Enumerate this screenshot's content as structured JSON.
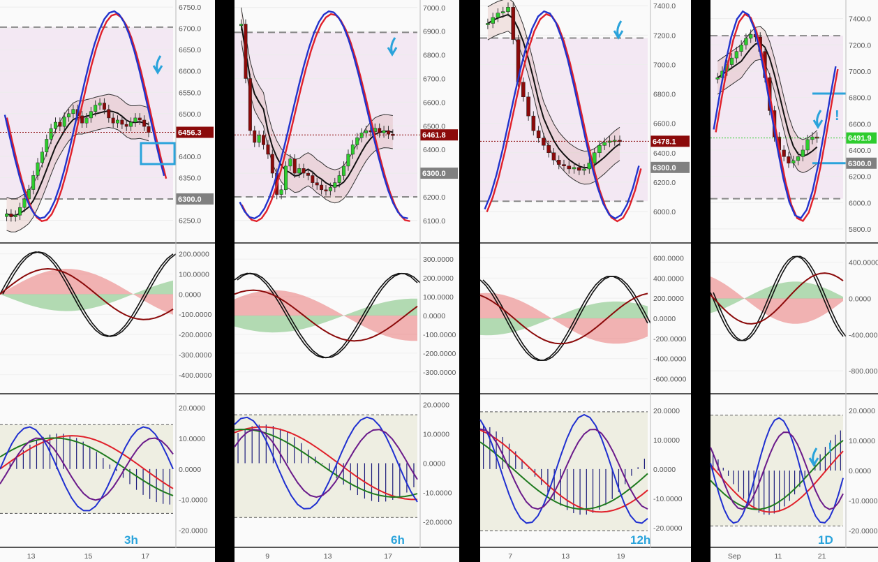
{
  "chart_data": [
    {
      "type": "line",
      "timeframe": "3h",
      "price": {
        "ylim": [
          6205,
          6760
        ],
        "y_ticks": [
          "6750.0",
          "6700.0",
          "6650.0",
          "6600.0",
          "6550.0",
          "6500.0",
          "6450.0",
          "6400.0",
          "6350.0",
          "6300.0",
          "6250.0"
        ],
        "y_tick_values": [
          6750,
          6700,
          6650,
          6600,
          6550,
          6500,
          6450,
          6400,
          6350,
          6300,
          6250
        ],
        "last_price": "6456.3",
        "last_price_value": 6456.3,
        "level_label": "6300.0",
        "level_value": 6300,
        "dashed_levels": [
          6703,
          6300
        ],
        "candles": [
          6265,
          6258,
          6262,
          6280,
          6300,
          6322,
          6355,
          6385,
          6410,
          6440,
          6465,
          6480,
          6470,
          6492,
          6500,
          6510,
          6495,
          6478,
          6490,
          6505,
          6520,
          6525,
          6510,
          6490,
          6478,
          6485,
          6475,
          6470,
          6480,
          6490,
          6485,
          6470,
          6456
        ]
      },
      "osc1": {
        "ylim": [
          -470,
          230
        ],
        "y_ticks": [
          "200.0000",
          "100.0000",
          "0.0000",
          "-100.0000",
          "-200.0000",
          "-300.0000",
          "-400.0000"
        ],
        "y_tick_values": [
          200,
          100,
          0,
          -100,
          -200,
          -300,
          -400
        ]
      },
      "osc2": {
        "ylim": [
          -24,
          23
        ],
        "y_ticks": [
          "20.0000",
          "10.0000",
          "0.0000",
          "-10.0000",
          "-20.0000"
        ],
        "y_tick_values": [
          20,
          10,
          0,
          -10,
          -20
        ],
        "band": [
          14.5,
          -14.5
        ]
      },
      "x_ticks": [
        "13",
        "15",
        "17"
      ]
    },
    {
      "type": "line",
      "timeframe": "6h",
      "price": {
        "ylim": [
          6020,
          7020
        ],
        "y_ticks": [
          "7000.0",
          "6900.0",
          "6800.0",
          "6700.0",
          "6600.0",
          "6500.0",
          "6400.0",
          "6300.0",
          "6200.0",
          "6100.0"
        ],
        "y_tick_values": [
          7000,
          6900,
          6800,
          6700,
          6600,
          6500,
          6400,
          6300,
          6200,
          6100
        ],
        "last_price": "6461.8",
        "last_price_value": 6461.8,
        "level_label": "6300.0",
        "level_value": 6300,
        "dashed_levels": [
          6895,
          6200
        ],
        "candles": [
          6930,
          6700,
          6480,
          6430,
          6460,
          6420,
          6380,
          6300,
          6210,
          6230,
          6330,
          6360,
          6300,
          6320,
          6300,
          6290,
          6260,
          6250,
          6230,
          6225,
          6240,
          6260,
          6290,
          6330,
          6380,
          6420,
          6450,
          6470,
          6480,
          6475,
          6490,
          6470,
          6480,
          6465,
          6461
        ]
      },
      "osc1": {
        "ylim": [
          -390,
          360
        ],
        "y_ticks": [
          "300.0000",
          "200.0000",
          "100.0000",
          "0.0000",
          "-100.0000",
          "-200.0000",
          "-300.0000"
        ],
        "y_tick_values": [
          300,
          200,
          100,
          0,
          -100,
          -200,
          -300
        ]
      },
      "osc2": {
        "ylim": [
          -27,
          22
        ],
        "y_ticks": [
          "20.0000",
          "10.0000",
          "0.0000",
          "-10.0000",
          "-20.0000"
        ],
        "y_tick_values": [
          20,
          10,
          0,
          -10,
          -20
        ],
        "band": [
          16.5,
          -18.5
        ]
      },
      "x_ticks": [
        "9",
        "13",
        "17"
      ]
    },
    {
      "type": "line",
      "timeframe": "12h",
      "price": {
        "ylim": [
          5810,
          7420
        ],
        "y_ticks": [
          "7400.0",
          "7200.0",
          "7000.0",
          "6800.0",
          "6600.0",
          "6400.0",
          "6200.0",
          "6000.0"
        ],
        "y_tick_values": [
          7400,
          7200,
          7000,
          6800,
          6600,
          6400,
          6200,
          6000
        ],
        "last_price": "6478.1",
        "last_price_value": 6478.1,
        "level_label": "6300.0",
        "level_value": 6300,
        "dashed_levels": [
          7180,
          6070
        ],
        "candles": [
          7280,
          7320,
          7350,
          7360,
          7390,
          7170,
          6880,
          6780,
          6650,
          6550,
          6500,
          6450,
          6400,
          6350,
          6320,
          6310,
          6290,
          6300,
          6280,
          6290,
          6330,
          6400,
          6450,
          6470,
          6480,
          6485,
          6478
        ]
      },
      "osc1": {
        "ylim": [
          -700,
          700
        ],
        "y_ticks": [
          "600.0000",
          "400.0000",
          "200.0000",
          "0.0000",
          "-200.0000",
          "-400.0000",
          "-600.0000"
        ],
        "y_tick_values": [
          600,
          400,
          200,
          0,
          -200,
          -400,
          -600
        ]
      },
      "osc2": {
        "ylim": [
          -25,
          24
        ],
        "y_ticks": [
          "20.0000",
          "10.0000",
          "0.0000",
          "-10.0000",
          "-20.0000"
        ],
        "y_tick_values": [
          20,
          10,
          0,
          -10,
          -20
        ],
        "band": [
          19.5,
          -21
        ]
      },
      "x_ticks": [
        "7",
        "13",
        "19"
      ]
    },
    {
      "type": "line",
      "timeframe": "1D",
      "price": {
        "ylim": [
          5720,
          7520
        ],
        "y_ticks": [
          "7400.0",
          "7200.0",
          "7000.0",
          "6800.0",
          "6600.0",
          "6400.0",
          "6200.0",
          "6000.0",
          "5800.0"
        ],
        "y_tick_values": [
          7400,
          7200,
          7000,
          6800,
          6600,
          6400,
          6200,
          6000,
          5800
        ],
        "last_price": "6491.9",
        "last_price_value": 6491.9,
        "level_label": "6300.0",
        "level_value": 6300,
        "dashed_levels": [
          7270,
          6030
        ],
        "blue_levels": [
          6830,
          6300
        ],
        "candles": [
          6950,
          7000,
          7050,
          7100,
          7150,
          7200,
          7250,
          7280,
          7260,
          7150,
          6950,
          6700,
          6500,
          6400,
          6350,
          6300,
          6320,
          6350,
          6400,
          6480,
          6500,
          6491
        ]
      },
      "osc1": {
        "ylim": [
          -1000,
          560
        ],
        "y_ticks": [
          "400.0000",
          "0.0000",
          "-400.0000",
          "-800.0000"
        ],
        "y_tick_values": [
          400,
          0,
          -400,
          -800
        ]
      },
      "osc2": {
        "ylim": [
          -24,
          24
        ],
        "y_ticks": [
          "20.0000",
          "10.0000",
          "0.0000",
          "-10.0000",
          "-20.0000"
        ],
        "y_tick_values": [
          20,
          10,
          0,
          -10,
          -20
        ],
        "band": [
          18.5,
          -18.5
        ]
      },
      "x_ticks": [
        "Sep",
        "11",
        "21"
      ]
    }
  ],
  "colors": {
    "bull": "#2ecc2e",
    "bear": "#8b0a0a",
    "tag_price": "#8b0a0a",
    "tag_price_1d": "#2ecc2e",
    "tag_level": "#808080",
    "annotation": "#2aa3db",
    "osc_band": "#eeeee2"
  },
  "annotations": {
    "exclamation_1": "!",
    "exclamation_2": "!"
  }
}
